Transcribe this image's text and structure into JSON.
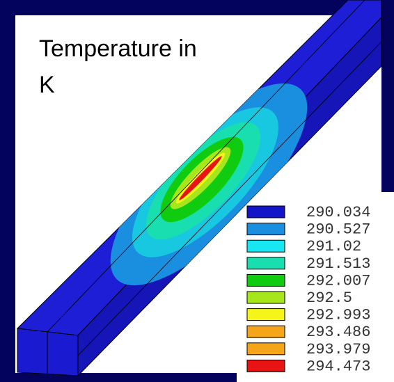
{
  "title": "Temperature in K",
  "legend": [
    {
      "label": "290.034",
      "color": "#1414c8"
    },
    {
      "label": "290.527",
      "color": "#1a8fe0"
    },
    {
      "label": "291.02",
      "color": "#18e6f0"
    },
    {
      "label": "291.513",
      "color": "#18deb0"
    },
    {
      "label": "292.007",
      "color": "#10cc10"
    },
    {
      "label": "292.5",
      "color": "#a6e61a"
    },
    {
      "label": "292.993",
      "color": "#f5f51a"
    },
    {
      "label": "293.486",
      "color": "#f5a51a"
    },
    {
      "label": "293.979",
      "color": "#f5a51a"
    },
    {
      "label": "294.473",
      "color": "#e81414"
    }
  ]
}
